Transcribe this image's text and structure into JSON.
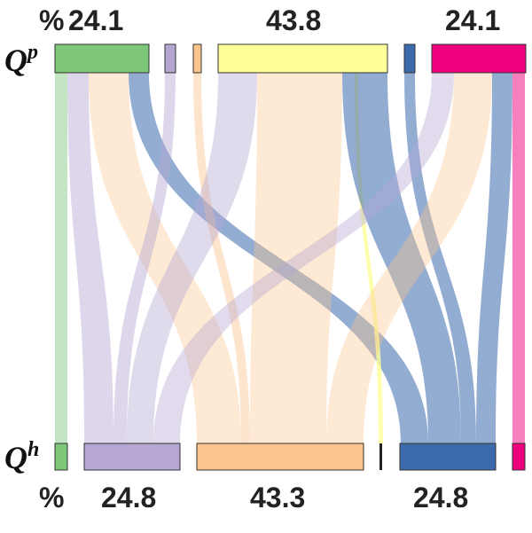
{
  "top_row": {
    "label": "Q",
    "superscript": "p",
    "percent_sign": "%",
    "values": [
      "24.1",
      "43.8",
      "24.1"
    ]
  },
  "bottom_row": {
    "label": "Q",
    "superscript": "h",
    "percent_sign": "%",
    "values": [
      "24.8",
      "43.3",
      "24.8"
    ]
  },
  "colors": {
    "green": "#7dc67a",
    "purple": "#b5a6d3",
    "orange": "#fbc48e",
    "yellow": "#feff99",
    "blue": "#3b6aad",
    "magenta": "#ef007c",
    "outline": "#333333"
  },
  "top_nodes": [
    {
      "id": "top-green",
      "color": "green"
    },
    {
      "id": "top-purple",
      "color": "purple"
    },
    {
      "id": "top-orange",
      "color": "orange"
    },
    {
      "id": "top-yellow",
      "color": "yellow"
    },
    {
      "id": "top-blue",
      "color": "blue"
    },
    {
      "id": "top-magenta",
      "color": "magenta"
    }
  ],
  "bottom_nodes": [
    {
      "id": "bottom-green",
      "color": "green"
    },
    {
      "id": "bottom-purple",
      "color": "purple"
    },
    {
      "id": "bottom-orange",
      "color": "orange"
    },
    {
      "id": "bottom-black",
      "color": "outline"
    },
    {
      "id": "bottom-blue",
      "color": "blue"
    },
    {
      "id": "bottom-magenta",
      "color": "magenta"
    }
  ]
}
